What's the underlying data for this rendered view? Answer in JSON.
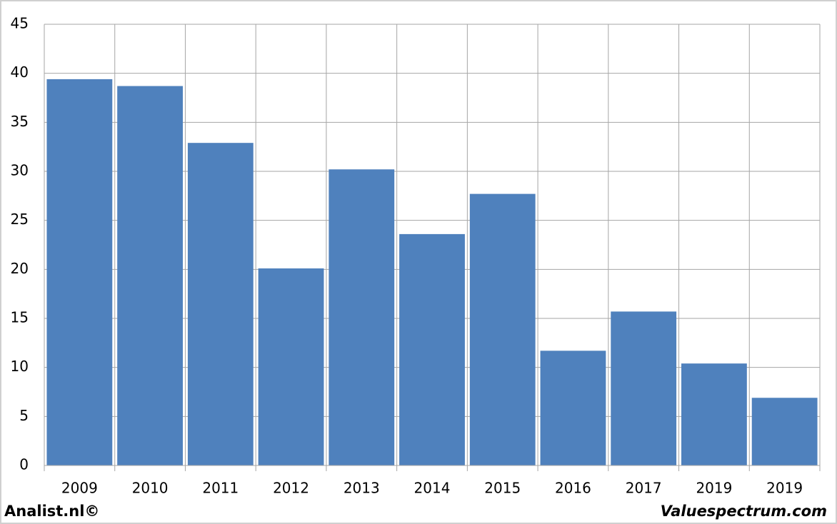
{
  "chart_data": {
    "type": "bar",
    "categories": [
      "2009",
      "2010",
      "2011",
      "2012",
      "2013",
      "2014",
      "2015",
      "2016",
      "2017",
      "2019",
      "2019"
    ],
    "values": [
      39.4,
      38.7,
      32.9,
      20.1,
      30.2,
      23.6,
      27.7,
      11.7,
      15.7,
      10.4,
      6.9
    ],
    "color": "#4f81bd",
    "ylim": [
      0,
      45
    ],
    "yticks": [
      0,
      5,
      10,
      15,
      20,
      25,
      30,
      35,
      40,
      45
    ],
    "grid": true,
    "source_left": "Analist.nl©",
    "source_right": "Valuespectrum.com"
  }
}
